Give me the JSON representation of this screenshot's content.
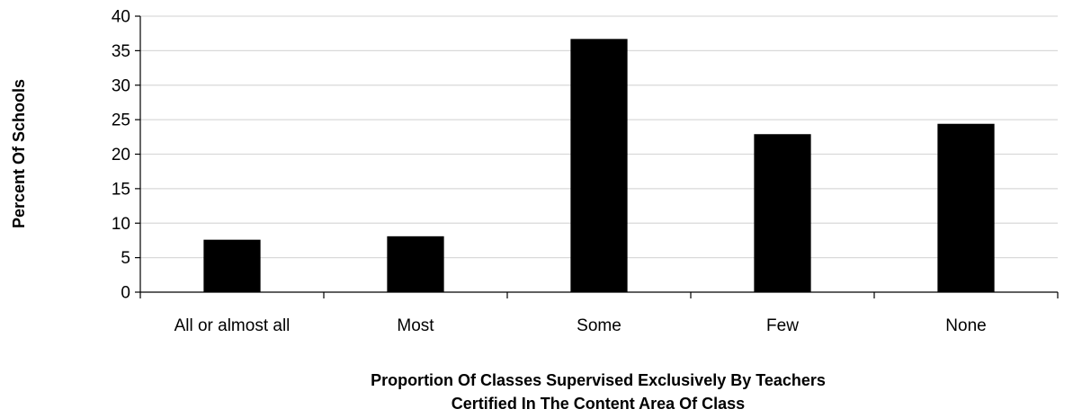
{
  "chart_data": {
    "type": "bar",
    "title": "",
    "categories": [
      "All or almost all",
      "Most",
      "Some",
      "Few",
      "None"
    ],
    "values": [
      7.6,
      8.1,
      36.7,
      22.9,
      24.4
    ],
    "ylabel": "Percent Of Schools",
    "xlabel_lines": [
      "Proportion Of Classes Supervised Exclusively By Teachers",
      "Certified In The Content Area Of Class"
    ],
    "ylim": [
      0,
      40
    ],
    "yticks": [
      0,
      5,
      10,
      15,
      20,
      25,
      30,
      35,
      40
    ],
    "grid": "horizontal",
    "legend": "none",
    "bar_color": "#000000",
    "grid_color": "#d9d9d9",
    "axis_color": "#000000"
  }
}
